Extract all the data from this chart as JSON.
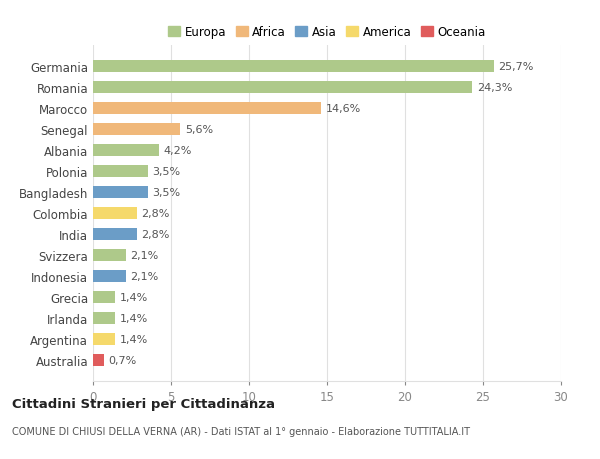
{
  "countries": [
    "Germania",
    "Romania",
    "Marocco",
    "Senegal",
    "Albania",
    "Polonia",
    "Bangladesh",
    "Colombia",
    "India",
    "Svizzera",
    "Indonesia",
    "Grecia",
    "Irlanda",
    "Argentina",
    "Australia"
  ],
  "values": [
    25.7,
    24.3,
    14.6,
    5.6,
    4.2,
    3.5,
    3.5,
    2.8,
    2.8,
    2.1,
    2.1,
    1.4,
    1.4,
    1.4,
    0.7
  ],
  "labels": [
    "25,7%",
    "24,3%",
    "14,6%",
    "5,6%",
    "4,2%",
    "3,5%",
    "3,5%",
    "2,8%",
    "2,8%",
    "2,1%",
    "2,1%",
    "1,4%",
    "1,4%",
    "1,4%",
    "0,7%"
  ],
  "continents": [
    "Europa",
    "Europa",
    "Africa",
    "Africa",
    "Europa",
    "Europa",
    "Asia",
    "America",
    "Asia",
    "Europa",
    "Asia",
    "Europa",
    "Europa",
    "America",
    "Oceania"
  ],
  "continent_colors": {
    "Europa": "#aec98a",
    "Africa": "#f0b87a",
    "Asia": "#6b9dc7",
    "America": "#f5d96b",
    "Oceania": "#e05c5c"
  },
  "legend_order": [
    "Europa",
    "Africa",
    "Asia",
    "America",
    "Oceania"
  ],
  "xlim": [
    0,
    30
  ],
  "xticks": [
    0,
    5,
    10,
    15,
    20,
    25,
    30
  ],
  "title": "Cittadini Stranieri per Cittadinanza",
  "subtitle": "COMUNE DI CHIUSI DELLA VERNA (AR) - Dati ISTAT al 1° gennaio - Elaborazione TUTTITALIA.IT",
  "background_color": "#ffffff",
  "grid_color": "#e0e0e0",
  "bar_height": 0.55
}
